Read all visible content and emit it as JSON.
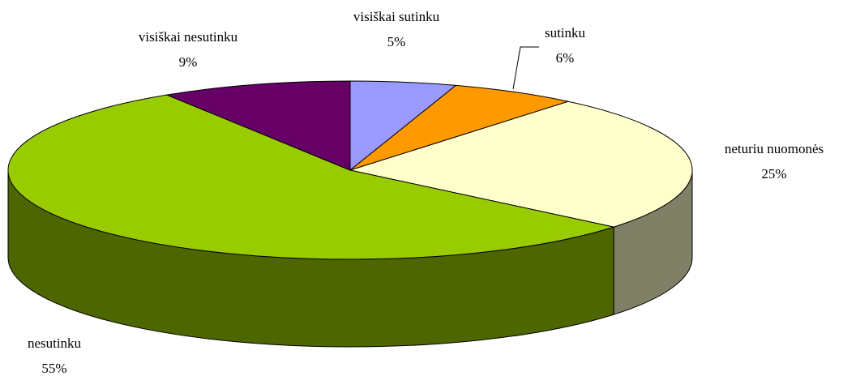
{
  "chart_data": {
    "type": "pie",
    "categories": [
      "visiškai sutinku",
      "sutinku",
      "neturiu nuomonės",
      "nesutinku",
      "visiškai nesutinku"
    ],
    "values": [
      5,
      6,
      25,
      55,
      9
    ],
    "value_labels": [
      "5%",
      "6%",
      "25%",
      "55%",
      "9%"
    ],
    "colors": [
      "#9999ff",
      "#ff9900",
      "#ffffcc",
      "#99cc00",
      "#660066"
    ]
  }
}
